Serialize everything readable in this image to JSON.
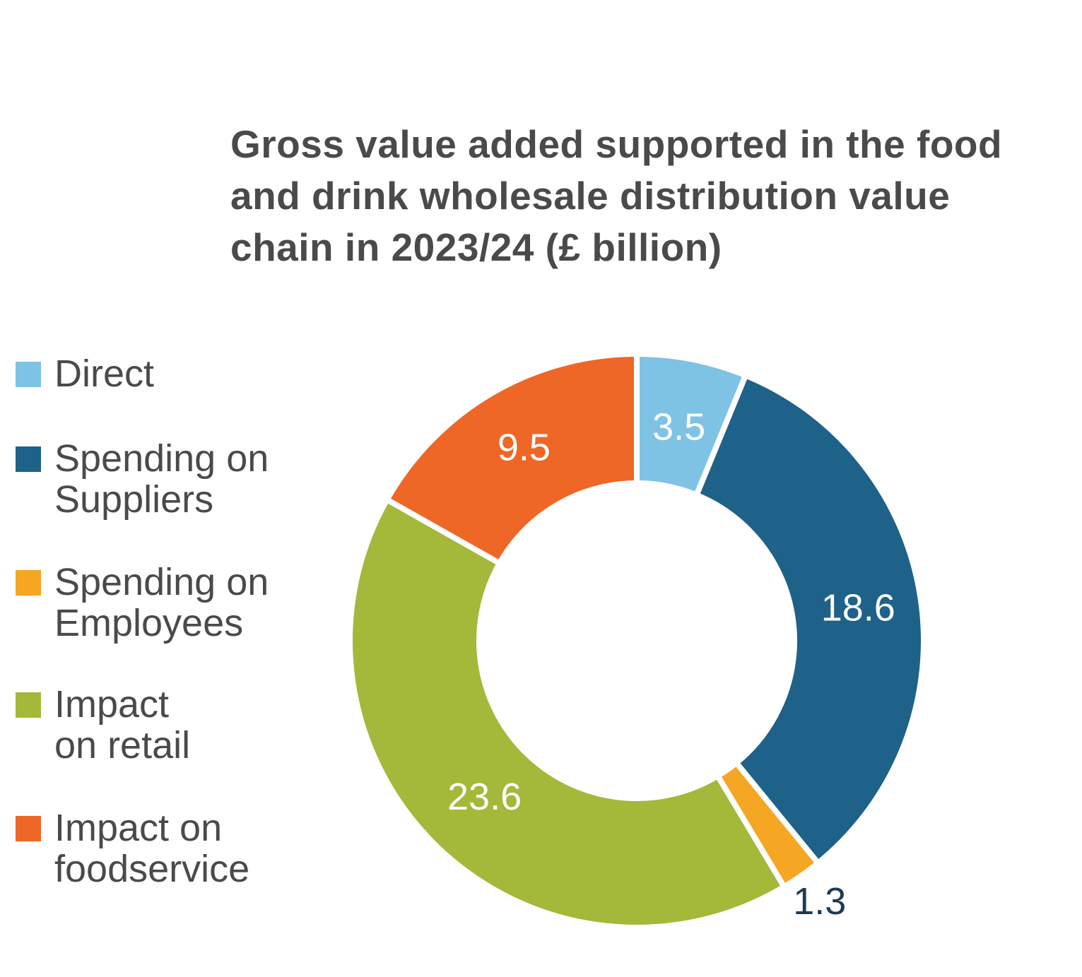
{
  "chart_data": {
    "type": "pie",
    "subtype": "donut",
    "title_lines": [
      "Gross value added supported in the food",
      "and drink wholesale distribution value",
      "chain in 2023/24 (£ billion)"
    ],
    "categories": [
      "Direct",
      "Spending on Suppliers",
      "Spending on Employees",
      "Impact on retail",
      "Impact on foodservice"
    ],
    "values": [
      3.5,
      18.6,
      1.3,
      23.6,
      9.5
    ],
    "value_labels": [
      "3.5",
      "18.6",
      "1.3",
      "23.6",
      "9.5"
    ],
    "legend": [
      {
        "lines": [
          "Direct"
        ],
        "color": "#7fc3e4"
      },
      {
        "lines": [
          "Spending on",
          "Suppliers"
        ],
        "color": "#1e6189"
      },
      {
        "lines": [
          "Spending on",
          "Employees"
        ],
        "color": "#f5a623"
      },
      {
        "lines": [
          "Impact",
          "on retail"
        ],
        "color": "#a4b83a"
      },
      {
        "lines": [
          "Impact on",
          "foodservice"
        ],
        "color": "#ee6727"
      }
    ],
    "label_colors": [
      "#ffffff",
      "#ffffff",
      "#1d3a52",
      "#ffffff",
      "#ffffff"
    ],
    "legend_position": "left"
  }
}
